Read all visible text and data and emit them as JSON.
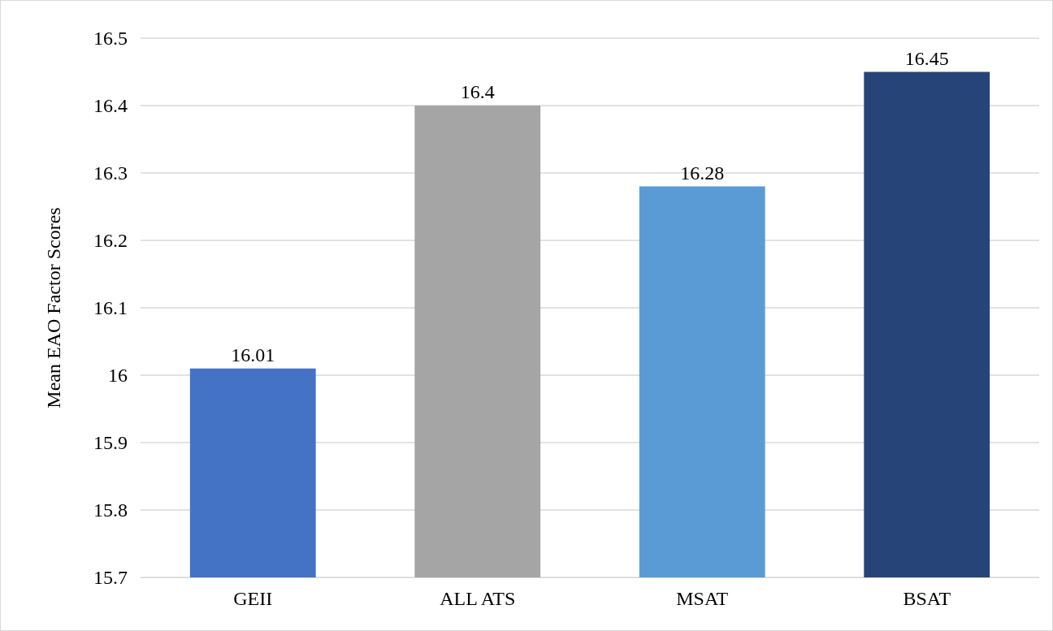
{
  "chart_data": {
    "type": "bar",
    "ylabel": "Mean EAO Factor Scores",
    "categories": [
      "GEII",
      "ALL ATS",
      "MSAT",
      "BSAT"
    ],
    "values": [
      16.01,
      16.4,
      16.28,
      16.45
    ],
    "colors": [
      "#4472c4",
      "#a5a5a5",
      "#5b9bd5",
      "#264478"
    ],
    "ylim": [
      15.7,
      16.5
    ],
    "yticks": [
      15.7,
      15.8,
      15.9,
      16,
      16.1,
      16.2,
      16.3,
      16.4,
      16.5
    ],
    "grid": "y",
    "data_labels": true
  }
}
